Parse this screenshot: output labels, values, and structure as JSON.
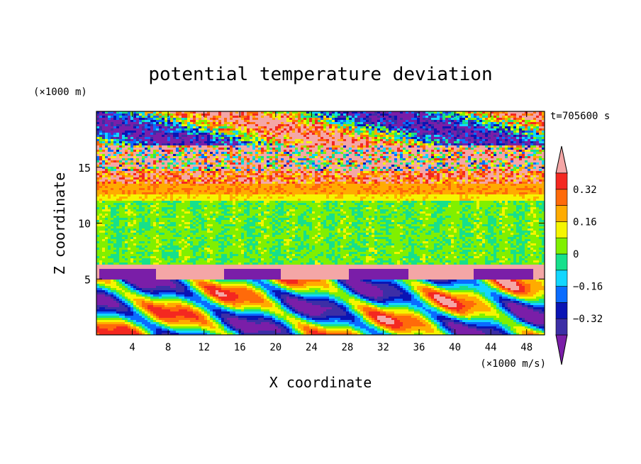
{
  "chart_data": {
    "type": "heatmap",
    "title": "potential temperature deviation",
    "xlabel": "X coordinate",
    "ylabel": "Z coordinate",
    "x_unit": "(×1000 m/s)",
    "y_unit": "(×1000 m)",
    "time_label": "t=705600 s",
    "xlim": [
      0,
      50
    ],
    "ylim": [
      0,
      20
    ],
    "x_ticks": [
      4,
      8,
      12,
      16,
      20,
      24,
      28,
      32,
      36,
      40,
      44,
      48
    ],
    "y_ticks": [
      5,
      10,
      15
    ],
    "colorbar": {
      "levels": [
        -0.4,
        -0.32,
        -0.24,
        -0.16,
        -0.08,
        0,
        0.08,
        0.16,
        0.24,
        0.32,
        0.4
      ],
      "tick_labels": [
        "0.32",
        "0.16",
        "0",
        "−0.16",
        "−0.32"
      ],
      "tick_values": [
        0.32,
        0.16,
        0,
        -0.16,
        -0.32
      ],
      "colors_low_to_high": [
        "#7a1ea8",
        "#3c2ea6",
        "#0a14b4",
        "#0a6cff",
        "#12d6ff",
        "#16e08c",
        "#80f000",
        "#f5f500",
        "#ffab00",
        "#ff6a0a",
        "#f42820",
        "#f4a6a6"
      ],
      "extends": "both"
    },
    "bands": [
      {
        "z": [
          0,
          6
        ],
        "description_level": "mixed"
      },
      {
        "z": [
          6,
          12
        ],
        "description_level": 0.04
      },
      {
        "z": [
          12,
          14.7
        ],
        "description_level": "positive"
      },
      {
        "z": [
          14.7,
          20
        ],
        "description_level": "mixed"
      }
    ]
  }
}
